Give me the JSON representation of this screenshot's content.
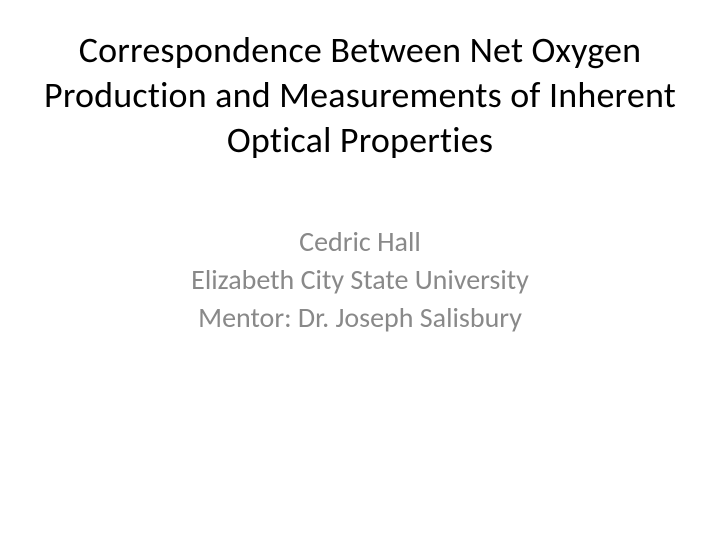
{
  "slide": {
    "title": "Correspondence Between Net Oxygen Production and Measurements of Inherent Optical Properties",
    "author": "Cedric Hall",
    "affiliation": "Elizabeth City State University",
    "mentor": "Mentor: Dr. Joseph Salisbury",
    "title_color": "#000000",
    "subtitle_color": "#898989",
    "background_color": "#ffffff",
    "title_fontsize": 36,
    "subtitle_fontsize": 28
  }
}
